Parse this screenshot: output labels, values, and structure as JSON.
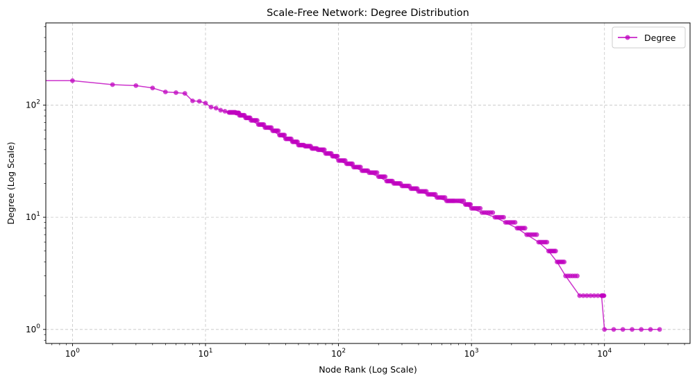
{
  "chart_data": {
    "type": "line",
    "title": "Scale-Free Network: Degree Distribution",
    "xlabel": "Node Rank (Log Scale)",
    "ylabel": "Degree (Log Scale)",
    "xscale": "log",
    "yscale": "log",
    "xlim": [
      0.63,
      44000
    ],
    "ylim": [
      0.75,
      540
    ],
    "x_ticks": [
      {
        "value": 1,
        "base": "10",
        "exp": "0"
      },
      {
        "value": 10,
        "base": "10",
        "exp": "1"
      },
      {
        "value": 100,
        "base": "10",
        "exp": "2"
      },
      {
        "value": 1000,
        "base": "10",
        "exp": "3"
      },
      {
        "value": 10000,
        "base": "10",
        "exp": "4"
      }
    ],
    "y_ticks": [
      {
        "value": 1,
        "base": "10",
        "exp": "0"
      },
      {
        "value": 10,
        "base": "10",
        "exp": "1"
      },
      {
        "value": 100,
        "base": "10",
        "exp": "2"
      }
    ],
    "grid": true,
    "legend_position": "top-right",
    "series": [
      {
        "name": "Degree",
        "color": "#bf00bf",
        "marker": "circle",
        "x": [
          1,
          2,
          3,
          4,
          5,
          6,
          7,
          8,
          9,
          10,
          11,
          12,
          13,
          14,
          15,
          16,
          17,
          18,
          20,
          22,
          25,
          28,
          32,
          36,
          40,
          45,
          50,
          56,
          63,
          70,
          80,
          90,
          100,
          115,
          130,
          150,
          170,
          200,
          230,
          260,
          300,
          350,
          400,
          470,
          550,
          650,
          750,
          900,
          1000,
          1200,
          1500,
          1800,
          2200,
          2600,
          3200,
          3800,
          4400,
          5100,
          6500,
          9500,
          10000,
          26000
        ],
        "y": [
          165,
          152,
          149,
          142,
          131,
          129,
          127,
          109,
          108,
          104,
          96,
          94,
          90,
          88,
          86,
          86,
          85,
          81,
          77,
          73,
          67,
          63,
          59,
          54,
          50,
          47,
          44,
          43,
          41,
          40,
          37,
          35,
          32,
          30,
          28,
          26,
          25,
          23,
          21,
          20,
          19,
          18,
          17,
          16,
          15,
          14,
          14,
          13,
          12,
          11,
          10,
          9,
          8,
          7,
          6,
          5,
          4,
          3,
          2,
          2,
          1,
          1
        ]
      }
    ]
  }
}
